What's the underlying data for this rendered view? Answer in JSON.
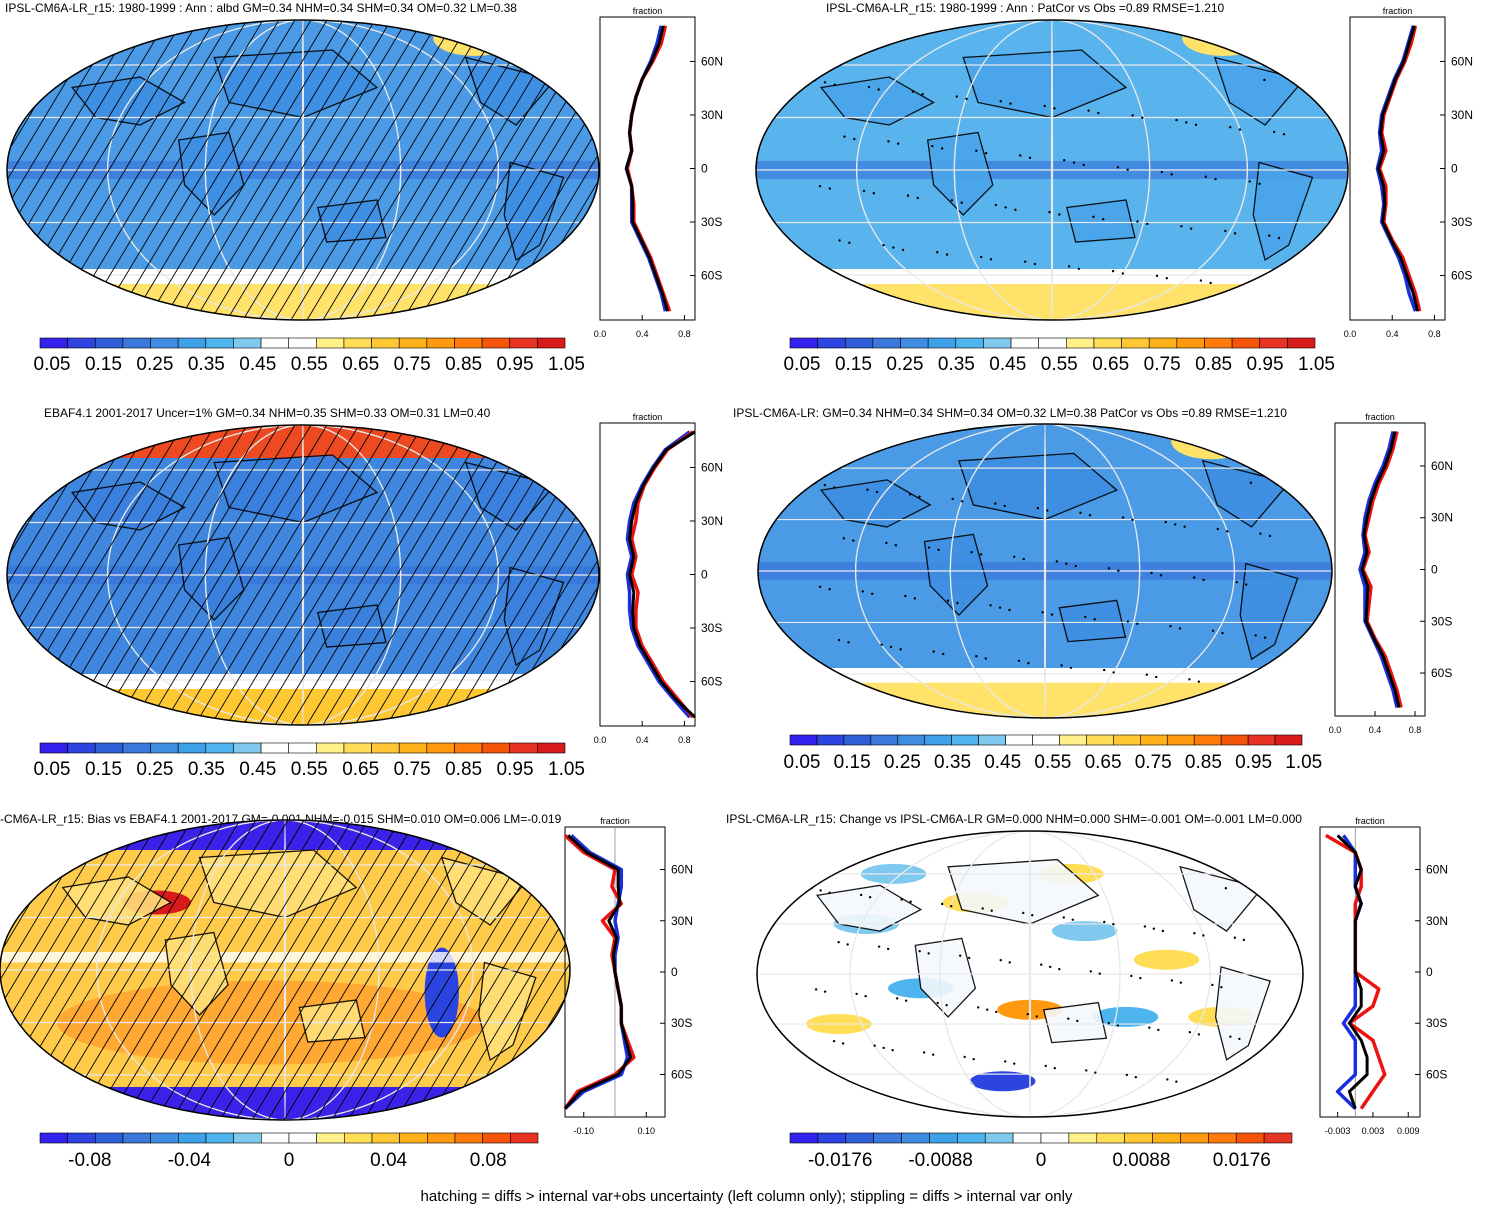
{
  "footer": "hatching = diffs > internal var+obs uncertainty (left column only); stippling = diffs > internal var only",
  "colors": {
    "abs_scale": [
      "#3322ee",
      "#2e44e0",
      "#2f5fd8",
      "#3a78dc",
      "#3f8de0",
      "#3ea1e8",
      "#4db4ee",
      "#7fc9ef",
      "#ffffff",
      "#ffffff",
      "#fff08a",
      "#ffdd55",
      "#ffc733",
      "#ffb11a",
      "#ff9910",
      "#ff7a0a",
      "#f55508",
      "#e63322",
      "#d91a1a"
    ],
    "diff_scale": [
      "#3322ee",
      "#2e44e0",
      "#2f5fd8",
      "#3a78dc",
      "#3f8de0",
      "#3ea1e8",
      "#4db4ee",
      "#7fc9ef",
      "#ffffff",
      "#ffffff",
      "#fff08a",
      "#ffdd55",
      "#ffc733",
      "#ffb11a",
      "#ff9910",
      "#ff7a0a",
      "#f55508",
      "#e63322"
    ]
  },
  "chart_data": [
    {
      "type": "heatmap",
      "title": "IPSL-CM6A-LR_r15: 1980-1999 : Ann : albd GM=0.34 NHM=0.34 SHM=0.34 OM=0.32 LM=0.38",
      "colorbar_labels": [
        "0.05",
        "0.15",
        "0.25",
        "0.35",
        "0.45",
        "0.55",
        "0.65",
        "0.75",
        "0.85",
        "0.95",
        "1.05"
      ],
      "zonal_profile": {
        "xlabel": "fraction",
        "xticks": [
          "0.0",
          "0.4",
          "0.8"
        ],
        "xlim": [
          0.0,
          0.9
        ],
        "yticks": [
          "60N",
          "30N",
          "0",
          "30S",
          "60S"
        ],
        "lat": [
          80,
          70,
          60,
          50,
          40,
          30,
          20,
          10,
          0,
          -10,
          -20,
          -30,
          -40,
          -50,
          -60,
          -70,
          -80
        ],
        "series": [
          {
            "values": [
              0.58,
              0.54,
              0.48,
              0.4,
              0.34,
              0.3,
              0.28,
              0.3,
              0.25,
              0.3,
              0.3,
              0.3,
              0.38,
              0.46,
              0.52,
              0.58,
              0.62
            ]
          },
          {
            "values": [
              0.62,
              0.58,
              0.5,
              0.4,
              0.34,
              0.3,
              0.28,
              0.3,
              0.26,
              0.3,
              0.32,
              0.32,
              0.4,
              0.48,
              0.54,
              0.6,
              0.66
            ]
          },
          {
            "values": [
              0.6,
              0.56,
              0.49,
              0.4,
              0.34,
              0.3,
              0.28,
              0.3,
              0.25,
              0.3,
              0.31,
              0.31,
              0.39,
              0.47,
              0.53,
              0.59,
              0.64
            ]
          }
        ]
      }
    },
    {
      "type": "heatmap",
      "title": "IPSL-CM6A-LR_r15: 1980-1999 : Ann : PatCor vs Obs =0.89 RMSE=1.210",
      "colorbar_labels": [
        "0.05",
        "0.15",
        "0.25",
        "0.35",
        "0.45",
        "0.55",
        "0.65",
        "0.75",
        "0.85",
        "0.95",
        "1.05"
      ],
      "zonal_profile": {
        "xlabel": "fraction",
        "xticks": [
          "0.0",
          "0.4",
          "0.8"
        ],
        "xlim": [
          0.0,
          0.9
        ],
        "yticks": [
          "60N",
          "30N",
          "0",
          "30S",
          "60S"
        ],
        "lat": [
          80,
          70,
          60,
          50,
          40,
          30,
          20,
          10,
          0,
          -10,
          -20,
          -30,
          -40,
          -50,
          -60,
          -70,
          -80
        ],
        "series": [
          {
            "values": [
              0.6,
              0.55,
              0.5,
              0.42,
              0.36,
              0.3,
              0.28,
              0.3,
              0.26,
              0.3,
              0.32,
              0.3,
              0.38,
              0.46,
              0.52,
              0.56,
              0.62
            ]
          },
          {
            "values": [
              0.62,
              0.58,
              0.52,
              0.44,
              0.38,
              0.32,
              0.3,
              0.34,
              0.28,
              0.34,
              0.34,
              0.32,
              0.4,
              0.5,
              0.56,
              0.62,
              0.66
            ]
          },
          {
            "values": [
              0.61,
              0.56,
              0.51,
              0.43,
              0.37,
              0.31,
              0.29,
              0.32,
              0.27,
              0.32,
              0.33,
              0.31,
              0.39,
              0.48,
              0.54,
              0.6,
              0.64
            ]
          }
        ]
      }
    },
    {
      "type": "heatmap",
      "title": "EBAF4.1 2001-2017 Uncer=1% GM=0.34 NHM=0.35 SHM=0.33 OM=0.31 LM=0.40",
      "colorbar_labels": [
        "0.05",
        "0.15",
        "0.25",
        "0.35",
        "0.45",
        "0.55",
        "0.65",
        "0.75",
        "0.85",
        "0.95",
        "1.05"
      ],
      "zonal_profile": {
        "xlabel": "fraction",
        "xticks": [
          "0.0",
          "0.4",
          "0.8"
        ],
        "xlim": [
          0.0,
          0.9
        ],
        "yticks": [
          "60N",
          "30N",
          "0",
          "30S",
          "60S"
        ],
        "lat": [
          80,
          70,
          60,
          50,
          40,
          30,
          20,
          10,
          0,
          -10,
          -20,
          -30,
          -40,
          -50,
          -60,
          -70,
          -80
        ],
        "series": [
          {
            "values": [
              0.85,
              0.62,
              0.5,
              0.4,
              0.32,
              0.28,
              0.26,
              0.3,
              0.26,
              0.28,
              0.28,
              0.3,
              0.36,
              0.46,
              0.56,
              0.7,
              0.85
            ]
          },
          {
            "values": [
              0.88,
              0.64,
              0.52,
              0.42,
              0.36,
              0.34,
              0.3,
              0.34,
              0.3,
              0.36,
              0.34,
              0.34,
              0.4,
              0.5,
              0.6,
              0.74,
              0.88
            ]
          },
          {
            "values": [
              0.9,
              0.63,
              0.51,
              0.41,
              0.34,
              0.3,
              0.28,
              0.32,
              0.28,
              0.32,
              0.31,
              0.32,
              0.38,
              0.48,
              0.58,
              0.72,
              0.9
            ]
          }
        ]
      }
    },
    {
      "type": "heatmap",
      "title": "IPSL-CM6A-LR: GM=0.34 NHM=0.34 SHM=0.34 OM=0.32 LM=0.38 PatCor vs Obs =0.89 RMSE=1.210",
      "colorbar_labels": [
        "0.05",
        "0.15",
        "0.25",
        "0.35",
        "0.45",
        "0.55",
        "0.65",
        "0.75",
        "0.85",
        "0.95",
        "1.05"
      ],
      "zonal_profile": {
        "xlabel": "fraction",
        "xticks": [
          "0.0",
          "0.4",
          "0.8"
        ],
        "xlim": [
          0.0,
          0.9
        ],
        "yticks": [
          "60N",
          "30N",
          "0",
          "30S",
          "60S"
        ],
        "lat": [
          80,
          70,
          60,
          50,
          40,
          30,
          20,
          10,
          0,
          -10,
          -20,
          -30,
          -40,
          -50,
          -60,
          -70,
          -80
        ],
        "series": [
          {
            "values": [
              0.58,
              0.54,
              0.48,
              0.4,
              0.34,
              0.3,
              0.28,
              0.3,
              0.25,
              0.3,
              0.3,
              0.3,
              0.38,
              0.46,
              0.52,
              0.58,
              0.62
            ]
          },
          {
            "values": [
              0.62,
              0.58,
              0.52,
              0.44,
              0.38,
              0.34,
              0.3,
              0.34,
              0.28,
              0.36,
              0.34,
              0.32,
              0.4,
              0.5,
              0.56,
              0.62,
              0.66
            ]
          },
          {
            "values": [
              0.6,
              0.56,
              0.5,
              0.42,
              0.36,
              0.32,
              0.29,
              0.32,
              0.27,
              0.33,
              0.32,
              0.31,
              0.39,
              0.48,
              0.54,
              0.6,
              0.64
            ]
          }
        ]
      }
    },
    {
      "type": "heatmap",
      "title": "-CM6A-LR_r15: Bias vs EBAF4.1 2001-2017 GM=-0.001 NHM=-0.015 SHM=0.010 OM=0.006 LM=-0.019",
      "colorbar_labels": [
        "-0.08",
        "-0.04",
        "0",
        "0.04",
        "0.08"
      ],
      "zonal_profile": {
        "xlabel": "fraction",
        "xticks": [
          "-0.10",
          "0.10"
        ],
        "xlim": [
          -0.16,
          0.16
        ],
        "yticks": [
          "60N",
          "30N",
          "0",
          "30S",
          "60S"
        ],
        "lat": [
          80,
          70,
          60,
          50,
          40,
          30,
          20,
          10,
          0,
          -10,
          -20,
          -30,
          -40,
          -50,
          -60,
          -70,
          -80
        ],
        "series": [
          {
            "values": [
              -0.14,
              -0.08,
              0.02,
              0.02,
              0.01,
              0.0,
              0.01,
              0.0,
              0.0,
              0.01,
              0.02,
              0.02,
              0.03,
              0.04,
              0.02,
              -0.1,
              -0.16
            ]
          },
          {
            "values": [
              -0.16,
              -0.1,
              0.0,
              -0.01,
              0.02,
              -0.04,
              0.0,
              -0.01,
              0.0,
              0.01,
              0.02,
              0.02,
              0.04,
              0.06,
              0.0,
              -0.12,
              -0.16
            ]
          },
          {
            "values": [
              -0.15,
              -0.09,
              0.01,
              0.01,
              0.015,
              -0.02,
              0.005,
              -0.005,
              0.0,
              0.01,
              0.02,
              0.02,
              0.035,
              0.05,
              0.01,
              -0.11,
              -0.16
            ]
          }
        ]
      }
    },
    {
      "type": "heatmap",
      "title": "IPSL-CM6A-LR_r15: Change vs IPSL-CM6A-LR GM=0.000 NHM=0.000 SHM=-0.001 OM=-0.001 LM=0.000",
      "colorbar_labels": [
        "-0.0176",
        "-0.0088",
        "0",
        "0.0088",
        "0.0176"
      ],
      "zonal_profile": {
        "xlabel": "fraction",
        "xticks": [
          "-0.003",
          "0.003",
          "0.009"
        ],
        "xlim": [
          -0.006,
          0.011
        ],
        "yticks": [
          "60N",
          "30N",
          "0",
          "30S",
          "60S"
        ],
        "lat": [
          80,
          70,
          60,
          50,
          40,
          30,
          20,
          10,
          0,
          -10,
          -20,
          -30,
          -40,
          -50,
          -60,
          -70,
          -80
        ],
        "series": [
          {
            "values": [
              -0.002,
              0.0,
              0.0,
              0.0,
              0.001,
              0.0,
              0.0,
              0.0,
              0.0,
              0.0,
              0.0,
              -0.002,
              0.0,
              0.0,
              0.0,
              -0.003,
              0.0
            ]
          },
          {
            "values": [
              -0.005,
              0.0,
              0.001,
              0.001,
              0.0,
              0.0,
              0.0,
              0.0,
              0.0,
              0.004,
              0.003,
              -0.001,
              0.003,
              0.004,
              0.005,
              0.003,
              0.001
            ]
          },
          {
            "values": [
              -0.003,
              0.0,
              0.001,
              0.0,
              0.001,
              0.0,
              0.0,
              0.0,
              0.0,
              0.001,
              0.001,
              -0.001,
              0.001,
              0.002,
              0.002,
              -0.001,
              0.0
            ]
          }
        ]
      }
    }
  ]
}
